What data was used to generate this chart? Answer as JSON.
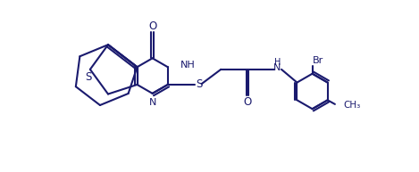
{
  "line_color": "#1a1a6e",
  "bg_color": "#ffffff",
  "line_width": 1.5,
  "fig_width": 4.69,
  "fig_height": 1.93,
  "dpi": 100,
  "xlim": [
    0,
    10
  ],
  "ylim": [
    0,
    4.2
  ]
}
